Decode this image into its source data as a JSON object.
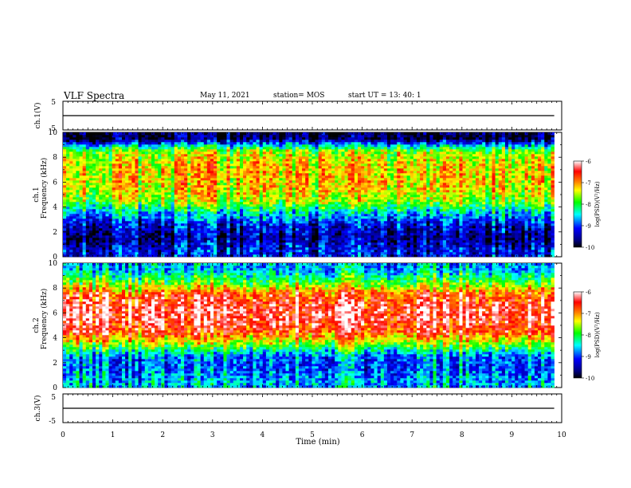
{
  "header": {
    "title": "VLF Spectra",
    "date": "May 11, 2021",
    "station": "station= MOS",
    "start": "start  UT  =   13: 40: 1"
  },
  "panels": {
    "ch1v": {
      "ylabel": "ch.1(V)",
      "yticks": [
        "5",
        "-5"
      ]
    },
    "ch1": {
      "ylabel_top": "ch.1",
      "ylabel_bottom": "Frequency (kHz)",
      "yticks": [
        "0",
        "2",
        "4",
        "6",
        "8",
        "10"
      ]
    },
    "ch2": {
      "ylabel_top": "ch.2",
      "ylabel_bottom": "Frequency (kHz)",
      "yticks": [
        "0",
        "2",
        "4",
        "6",
        "8",
        "10"
      ]
    },
    "ch3v": {
      "ylabel": "ch.3(V)",
      "yticks": [
        "5",
        "-5"
      ]
    }
  },
  "xaxis": {
    "label": "Time (min)",
    "ticks": [
      "0",
      "1",
      "2",
      "3",
      "4",
      "5",
      "6",
      "7",
      "8",
      "9",
      "10"
    ]
  },
  "colorbar": {
    "label": "log(PSD)(V²/Hz)",
    "ticks": [
      "-6",
      "-7",
      "-8",
      "-9",
      "-10"
    ]
  },
  "colors": {
    "scale": [
      "#000080",
      "#0000ff",
      "#00ffff",
      "#00ff00",
      "#ffff00",
      "#ff8000",
      "#ff0000",
      "#ffffff"
    ]
  },
  "chart_data": [
    {
      "type": "line",
      "title": "ch.1(V)",
      "x": [
        0,
        9.85
      ],
      "y": [
        0,
        0
      ],
      "xlim": [
        0,
        10
      ],
      "ylim": [
        -5,
        5
      ],
      "xlabel": "",
      "ylabel": "ch.1(V)"
    },
    {
      "type": "heatmap",
      "ylabel": "ch.1 Frequency (kHz)",
      "xlim": [
        0,
        10
      ],
      "ylim": [
        0,
        10
      ],
      "x_data_end": 9.85,
      "colorbar_range": [
        -10,
        -6
      ],
      "frequency_kHz": [
        0.5,
        1.5,
        2.5,
        3.5,
        4.5,
        5.5,
        6.5,
        7.5,
        8.5,
        9.5
      ],
      "typical_log_psd": [
        -9.2,
        -9.6,
        -9.3,
        -8.6,
        -7.6,
        -7.3,
        -7.2,
        -7.3,
        -7.6,
        -9.8
      ]
    },
    {
      "type": "heatmap",
      "ylabel": "ch.2 Frequency (kHz)",
      "xlim": [
        0,
        10
      ],
      "ylim": [
        0,
        10
      ],
      "x_data_end": 9.85,
      "colorbar_range": [
        -10,
        -6
      ],
      "frequency_kHz": [
        0.5,
        1.5,
        2.5,
        3.5,
        4.5,
        5.5,
        6.5,
        7.5,
        8.5,
        9.5
      ],
      "typical_log_psd": [
        -8.6,
        -8.9,
        -8.8,
        -7.6,
        -6.6,
        -6.3,
        -6.3,
        -6.7,
        -7.8,
        -8.6
      ]
    },
    {
      "type": "line",
      "title": "ch.3(V)",
      "x": [
        0,
        9.85
      ],
      "y": [
        0,
        0
      ],
      "xlim": [
        0,
        10
      ],
      "ylim": [
        -5,
        5
      ],
      "xlabel": "Time (min)",
      "ylabel": "ch.3(V)"
    }
  ]
}
